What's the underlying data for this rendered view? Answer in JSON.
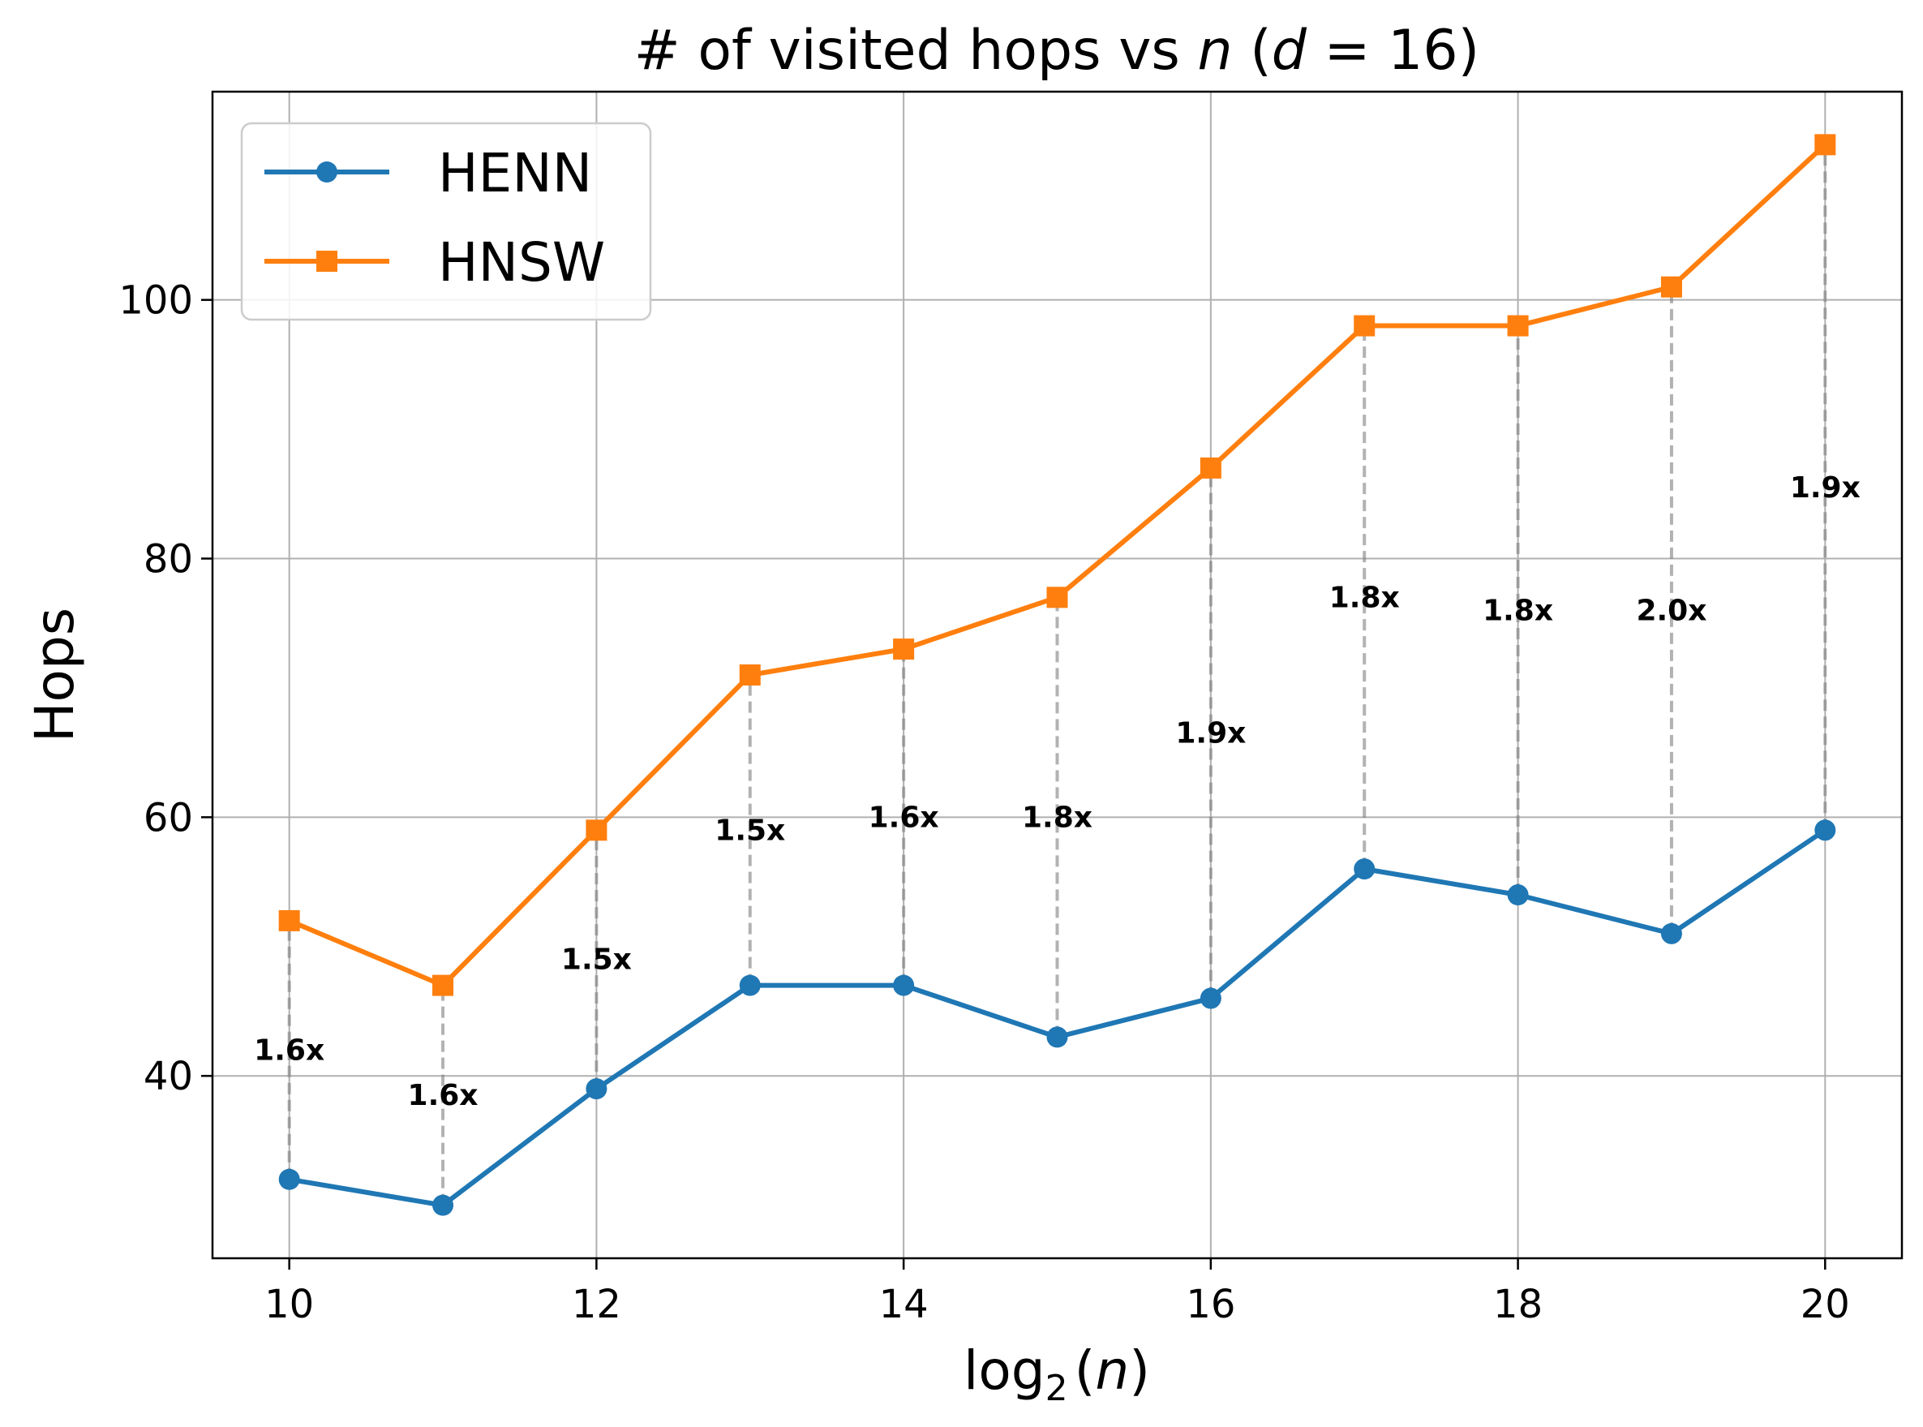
{
  "chart_data": {
    "type": "line",
    "title": "# of visited hops vs n (d = 16)",
    "title_parts": {
      "prefix": "# of visited hops vs ",
      "var_n": "n",
      "open": " (",
      "var_d": "d",
      "eq": " = 16)"
    },
    "xlabel": "log2 (n)",
    "xlabel_parts": {
      "fn": "log",
      "sub": "2",
      "open": "(",
      "var": "n",
      "close": ")"
    },
    "ylabel": "Hops",
    "xlim": [
      9.5,
      20.5
    ],
    "ylim": [
      25.9,
      116.1
    ],
    "xticks": [
      10,
      12,
      14,
      16,
      18,
      20
    ],
    "yticks": [
      40,
      60,
      80,
      100
    ],
    "grid": true,
    "legend_position": "upper-left",
    "x": [
      10,
      11,
      12,
      13,
      14,
      15,
      16,
      17,
      18,
      19,
      20
    ],
    "series": [
      {
        "name": "HENN",
        "color": "#1f77b4",
        "marker": "circle",
        "values": [
          32,
          30,
          39,
          47,
          47,
          43,
          46,
          56,
          54,
          51,
          59
        ]
      },
      {
        "name": "HNSW",
        "color": "#ff7f0e",
        "marker": "square",
        "values": [
          52,
          47,
          59,
          71,
          73,
          77,
          87,
          98,
          98,
          101,
          112
        ]
      }
    ],
    "ratio_labels": [
      "1.6x",
      "1.6x",
      "1.5x",
      "1.5x",
      "1.6x",
      "1.8x",
      "1.9x",
      "1.8x",
      "1.8x",
      "2.0x",
      "1.9x"
    ]
  }
}
